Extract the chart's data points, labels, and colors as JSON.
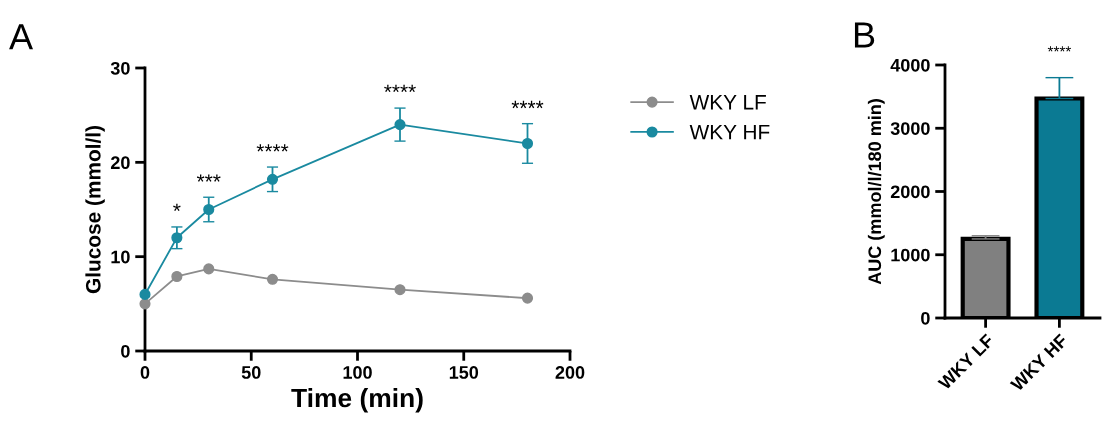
{
  "chart_data": [
    {
      "type": "line",
      "title": "A",
      "xlabel": "Time (min)",
      "ylabel": "Glucose (mmol/l)",
      "x": [
        0,
        15,
        30,
        60,
        120,
        180
      ],
      "xlim": [
        0,
        200
      ],
      "xticks": [
        0,
        50,
        100,
        150,
        200
      ],
      "ylim": [
        0,
        30
      ],
      "yticks": [
        0,
        10,
        20,
        30
      ],
      "marker": "circle",
      "line_style": "solid",
      "grid": false,
      "legend": "right",
      "series": [
        {
          "name": "WKY LF",
          "color": "#8c8c8c",
          "values": [
            5.0,
            7.9,
            8.7,
            7.6,
            6.5,
            5.6
          ]
        },
        {
          "name": "WKY HF",
          "color": "#1a8aa0",
          "values": [
            6.0,
            12.0,
            15.0,
            18.2,
            24.0,
            22.0
          ],
          "errors": [
            null,
            1.15,
            1.3,
            1.3,
            1.75,
            2.1
          ]
        }
      ],
      "annotations": [
        {
          "text": "*",
          "x": 15,
          "y": 13.2
        },
        {
          "text": "***",
          "x": 30,
          "y": 16.3
        },
        {
          "text": "****",
          "x": 60,
          "y": 19.5
        },
        {
          "text": "****",
          "x": 120,
          "y": 25.8
        },
        {
          "text": "****",
          "x": 180,
          "y": 24.1
        }
      ]
    },
    {
      "type": "bar",
      "title": "B",
      "ylabel": "AUC (mmol/l/180 min)",
      "categories": [
        "WKY LF",
        "WKY HF"
      ],
      "values": [
        1250,
        3470
      ],
      "colors": [
        "#808080",
        "#0b7a93"
      ],
      "errors": [
        [
          1250,
          1300
        ],
        [
          3470,
          3800
        ]
      ],
      "ylim": [
        0,
        4000
      ],
      "yticks": [
        0,
        1000,
        2000,
        3000,
        4000
      ],
      "grid": false,
      "annotations": [
        "****"
      ]
    }
  ]
}
